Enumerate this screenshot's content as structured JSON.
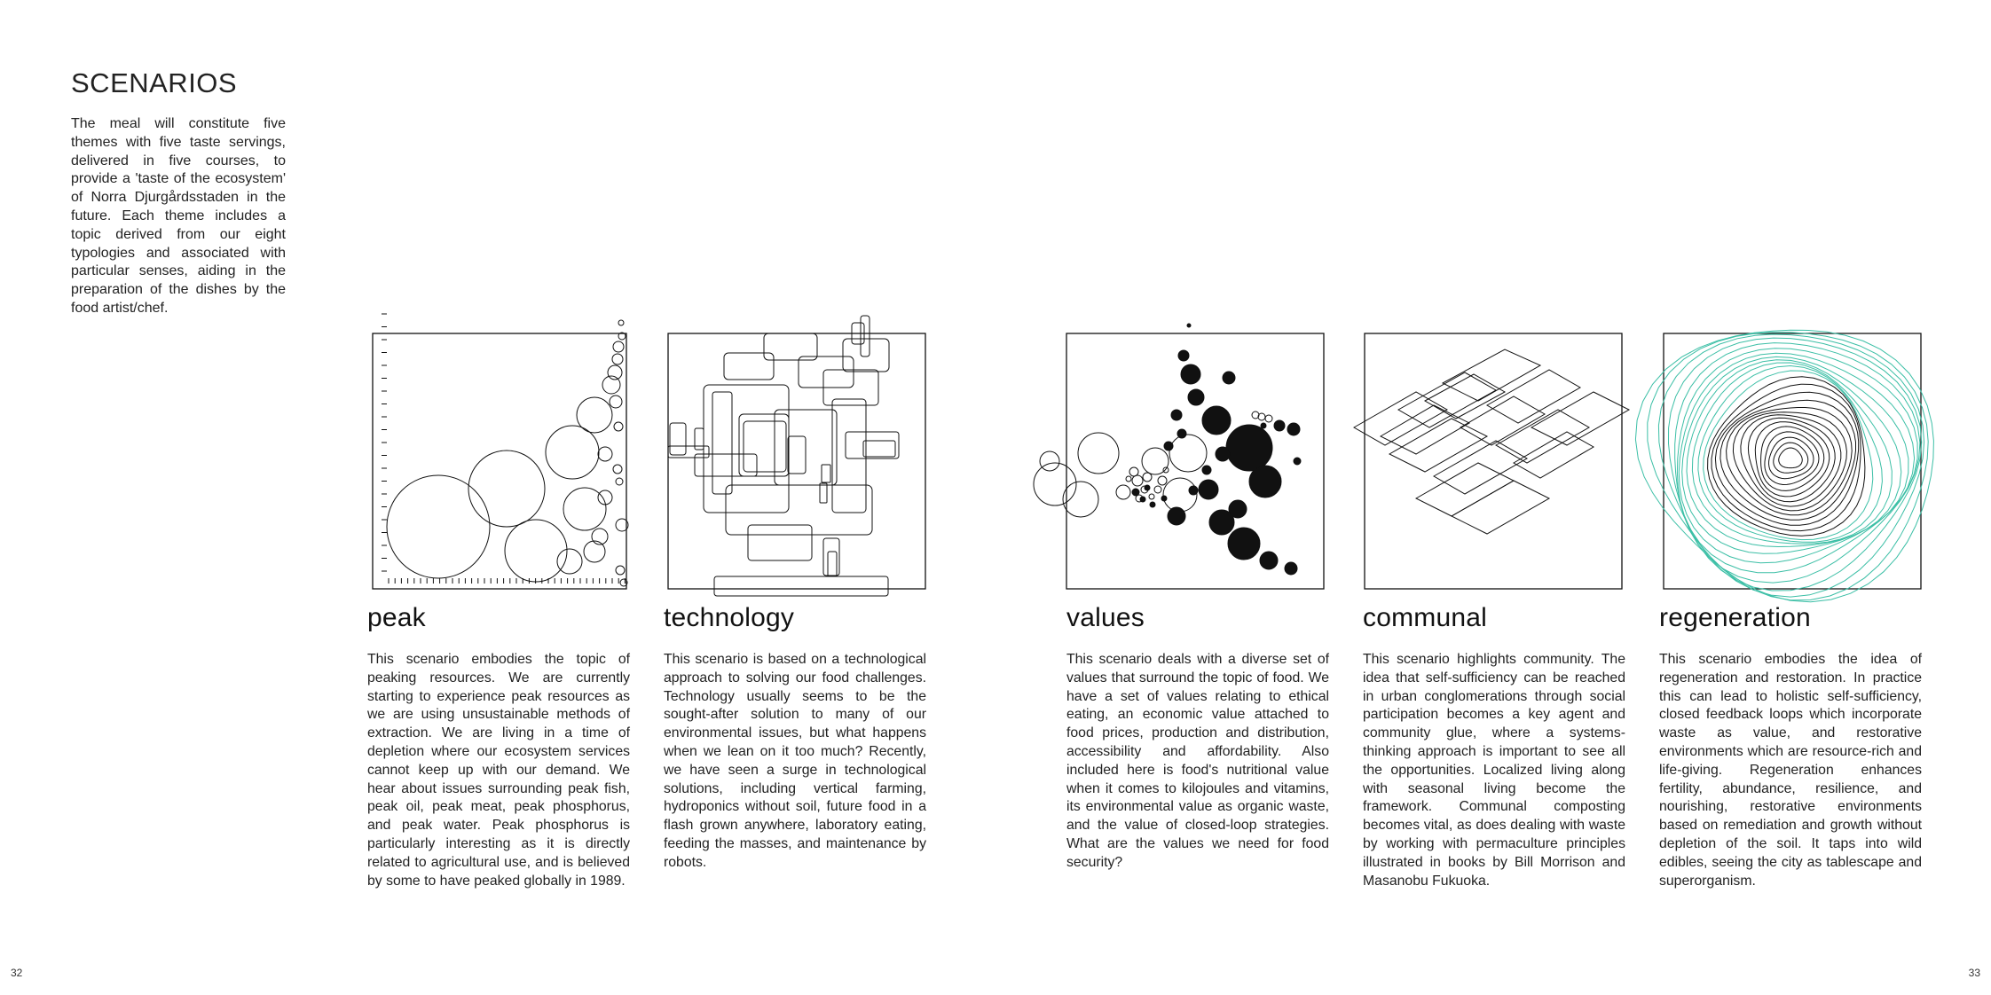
{
  "page": {
    "title": "SCENARIOS",
    "intro": "The meal will constitute five themes with five taste servings, delivered in five courses, to provide a 'taste of the ecosystem' of Norra Djurgårdsstaden in the future. Each theme includes a topic derived from our eight typologies and associated with particular senses, aiding in the preparation of the dishes by the food artist/chef.",
    "page_left": "32",
    "page_right": "33"
  },
  "scenarios": [
    {
      "title": "peak",
      "text": "This scenario embodies the topic of peaking resources. We are currently starting to experience peak resources as we are using unsustainable methods of extraction. We are living in a time of depletion where our ecosystem services cannot keep up with our demand. We hear about issues surrounding peak fish, peak oil, peak meat, peak phosphorus, and peak water. Peak phosphorus is particularly interesting as it is directly related to agricultural use, and is believed by some to have peaked globally in 1989."
    },
    {
      "title": "technology",
      "text": "This scenario is based on a technological approach to solving our food challenges. Technology usually seems to be the sought-after solution to many of our environmental issues, but what happens when we lean on it too much? Recently, we have seen a surge in technological solutions, including vertical farming, hydroponics without soil, future food in a flash grown anywhere, laboratory eating, feeding the masses, and maintenance by robots."
    },
    {
      "title": "values",
      "text": "This scenario deals with a diverse set of values that surround the topic of food. We have a set of values relating to ethical eating, an economic value attached to food prices, production and distribution, accessibility and affordability. Also included here is food's nutritional value when it comes to kilojoules and vitamins, its environmental value as organic waste, and the value of closed-loop strategies. What are the values we need for food security?"
    },
    {
      "title": "communal",
      "text": "This scenario highlights community. The idea that self-sufficiency can be reached in urban conglomerations through social participation becomes a key agent and community glue, where a systems-thinking approach is important to see all the opportunities. Localized living along with seasonal living become the framework. Communal composting becomes vital, as does dealing with waste by working with permaculture principles illustrated in books by Bill Morrison and Masanobu Fukuoka."
    },
    {
      "title": "regeneration",
      "text": "This scenario embodies the idea of regeneration and restoration. In practice this can lead to holistic self-sufficiency, closed feedback loops which incorporate waste as value, and restorative environments which are resource-rich and life-giving. Regeneration enhances fertility, abundance, resilience, and nourishing, restorative environments based on remediation and growth without depletion of the soil. It taps into wild edibles, seeing the city as tablescape and superorganism."
    }
  ],
  "colors": {
    "ink": "#111111",
    "text": "#222222",
    "teal": "#3cbfa6"
  }
}
